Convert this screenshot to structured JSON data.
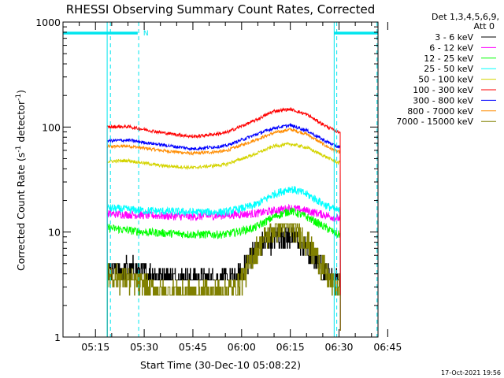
{
  "chart_data": {
    "type": "line",
    "title": "RHESSI Observing Summary Count Rates, Corrected",
    "xlabel": "Start Time (30-Dec-10 05:08:22)",
    "ylabel_parts": [
      "Corrected Count Rate (s",
      "-1",
      " detector",
      "-1",
      ")"
    ],
    "y_scale": "log",
    "ylim": [
      1,
      1000
    ],
    "y_ticks": [
      1,
      10,
      100,
      1000
    ],
    "y_tick_labels": [
      "1",
      "10",
      "100",
      "1000"
    ],
    "xlim_minutes": [
      5.0,
      102.0
    ],
    "x_ticks_minutes": [
      15,
      30,
      45,
      60,
      75,
      90,
      105
    ],
    "x_tick_labels": [
      "05:15",
      "05:30",
      "05:45",
      "06:00",
      "06:15",
      "06:30",
      "06:45"
    ],
    "detector_info": [
      "Det 1,3,4,5,6,9,",
      "Att 0"
    ],
    "timestamp": "17-Oct-2021 19:56",
    "annotations": {
      "night_bars": [
        [
          5.0,
          28.0
        ],
        [
          88.5,
          102.0
        ]
      ],
      "night_marker": "N",
      "solid_lines": [
        18.6,
        88.5
      ],
      "dashed_lines": [
        19.6,
        28.3,
        89.3,
        101.7
      ]
    },
    "data_start_minute": 18.6,
    "data_end_minute": 90.4,
    "series": [
      {
        "name": "3 - 6 keV",
        "color": "#000000",
        "times": [
          18.6,
          25,
          35,
          45,
          55,
          58.5,
          61,
          64,
          68,
          72,
          76,
          79,
          83,
          87,
          89.5
        ],
        "values": [
          4.2,
          4.5,
          3.8,
          3.5,
          3.5,
          3.6,
          5.0,
          6.8,
          8.5,
          9.5,
          9.0,
          7.5,
          5.5,
          3.8,
          3.5
        ]
      },
      {
        "name": "6 - 12 keV",
        "color": "#ff00ff",
        "times": [
          18.6,
          30,
          45,
          55,
          64,
          70,
          75,
          80,
          86,
          89.5
        ],
        "values": [
          15.0,
          14.5,
          14.0,
          14.5,
          15.0,
          16.0,
          17.0,
          16.0,
          14.5,
          13.5
        ]
      },
      {
        "name": "12 - 25 keV",
        "color": "#00ff00",
        "times": [
          18.6,
          30,
          45,
          55,
          64,
          70,
          75,
          80,
          86,
          89.5
        ],
        "values": [
          11.0,
          10.0,
          9.5,
          9.5,
          11.0,
          14.0,
          16.0,
          14.0,
          11.0,
          9.5
        ]
      },
      {
        "name": "25 - 50 keV",
        "color": "#00ffff",
        "times": [
          18.6,
          30,
          45,
          55,
          64,
          70,
          75,
          80,
          86,
          89.5
        ],
        "values": [
          17.0,
          16.0,
          15.5,
          15.5,
          18.0,
          23.0,
          26.0,
          23.0,
          18.0,
          16.0
        ]
      },
      {
        "name": "50 - 100 keV",
        "color": "#d4d400",
        "times": [
          18.6,
          25,
          35,
          45,
          55,
          64,
          70,
          75,
          80,
          86,
          89.5
        ],
        "values": [
          47.0,
          48.0,
          43.0,
          41.0,
          44.0,
          55.0,
          66.0,
          69.0,
          64.0,
          52.0,
          46.0
        ]
      },
      {
        "name": "100 - 300 keV",
        "color": "#ff0000",
        "times": [
          18.6,
          25,
          35,
          45,
          55,
          64,
          70,
          75,
          80,
          86,
          89.5
        ],
        "values": [
          100.0,
          101.0,
          89.0,
          81.0,
          88.0,
          115.0,
          142.0,
          148.0,
          132.0,
          102.0,
          90.0
        ]
      },
      {
        "name": "300 - 800 keV",
        "color": "#0000ff",
        "times": [
          18.6,
          25,
          35,
          45,
          55,
          64,
          70,
          75,
          80,
          86,
          89.5
        ],
        "values": [
          74.0,
          75.0,
          68.0,
          62.0,
          66.0,
          84.0,
          98.0,
          104.0,
          93.0,
          73.0,
          65.0
        ]
      },
      {
        "name": "800 - 7000 keV",
        "color": "#ff8c00",
        "times": [
          18.6,
          25,
          35,
          45,
          55,
          64,
          70,
          75,
          80,
          86,
          89.5
        ],
        "values": [
          65.0,
          66.0,
          60.0,
          56.0,
          59.0,
          75.0,
          88.0,
          95.0,
          86.0,
          66.0,
          58.0
        ]
      },
      {
        "name": "7000 - 15000 keV",
        "color": "#808000",
        "times": [
          18.6,
          25,
          35,
          45,
          55,
          58.5,
          61,
          64,
          68,
          72,
          76,
          79,
          83,
          87,
          89.5
        ],
        "values": [
          4.0,
          3.5,
          2.7,
          2.6,
          2.8,
          3.0,
          4.2,
          6.5,
          9.5,
          12.0,
          11.0,
          9.0,
          6.0,
          3.5,
          3.0
        ]
      }
    ]
  }
}
